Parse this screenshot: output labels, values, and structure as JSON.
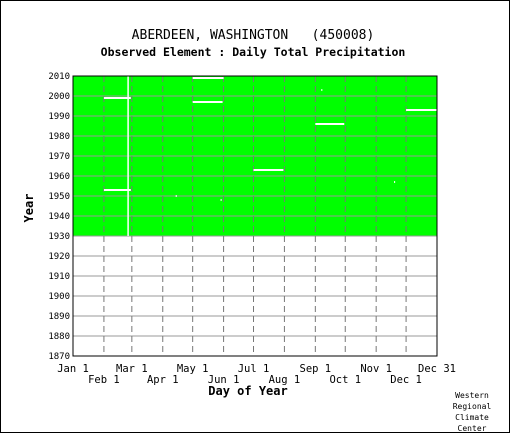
{
  "chart_data": {
    "type": "heatmap",
    "title": "ABERDEEN, WASHINGTON   (450008)",
    "subtitle": "Observed Element : Daily Total Precipitation",
    "xlabel": "Day of Year",
    "ylabel": "Year",
    "xlim": [
      1,
      366
    ],
    "ylim": [
      1870,
      2010
    ],
    "y_ticks": [
      1870,
      1880,
      1890,
      1900,
      1910,
      1920,
      1930,
      1940,
      1950,
      1960,
      1970,
      1980,
      1990,
      2000,
      2010
    ],
    "x_ticks_upper": [
      {
        "label": "Jan 1",
        "day": 1
      },
      {
        "label": "Mar 1",
        "day": 60
      },
      {
        "label": "May 1",
        "day": 121
      },
      {
        "label": "Jul 1",
        "day": 182
      },
      {
        "label": "Sep 1",
        "day": 244
      },
      {
        "label": "Nov 1",
        "day": 305
      },
      {
        "label": "Dec 31",
        "day": 366
      }
    ],
    "x_ticks_lower": [
      {
        "label": "Feb 1",
        "day": 32
      },
      {
        "label": "Apr 1",
        "day": 91
      },
      {
        "label": "Jun 1",
        "day": 152
      },
      {
        "label": "Aug 1",
        "day": 213
      },
      {
        "label": "Oct 1",
        "day": 274
      },
      {
        "label": "Dec 1",
        "day": 335
      }
    ],
    "data_color": "#00ff00",
    "coverage": {
      "year_start": 1930,
      "year_end": 2010,
      "day_start": 1,
      "day_end": 366
    },
    "missing_segments": [
      {
        "year": 2009,
        "day_start": 121,
        "day_end": 152
      },
      {
        "year": 1999,
        "day_start": 32,
        "day_end": 59
      },
      {
        "year": 1997,
        "day_start": 121,
        "day_end": 151
      },
      {
        "year": 1993,
        "day_start": 335,
        "day_end": 366
      },
      {
        "year": 1986,
        "day_start": 244,
        "day_end": 273
      },
      {
        "year": 1963,
        "day_start": 182,
        "day_end": 212
      },
      {
        "year": 1953,
        "day_start": 32,
        "day_end": 59
      },
      {
        "year": 2003,
        "day_start": 250,
        "day_end": 251
      },
      {
        "year": 1957,
        "day_start": 323,
        "day_end": 324
      },
      {
        "year": 1950,
        "day_start": 104,
        "day_end": 105
      },
      {
        "year": 1948,
        "day_start": 149,
        "day_end": 150
      }
    ],
    "missing_columns": [
      {
        "day": 56,
        "year_start": 1930,
        "year_end": 2010
      }
    ],
    "grid": true
  },
  "credit": [
    "Western",
    "Regional",
    "Climate",
    "Center"
  ]
}
